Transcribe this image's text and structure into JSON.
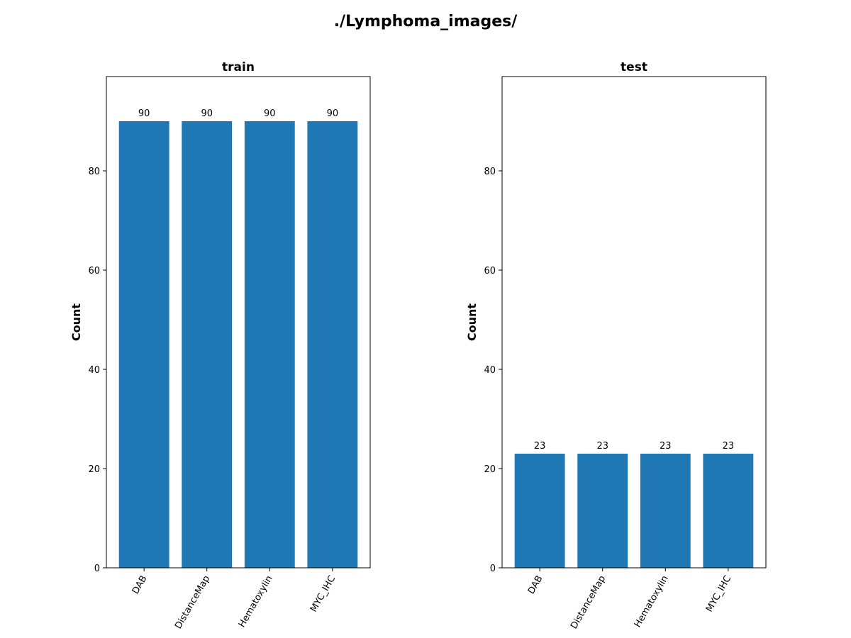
{
  "figure_title": "./Lymphoma_images/",
  "chart_data": [
    {
      "type": "bar",
      "title": "train",
      "xlabel": "",
      "ylabel": "Count",
      "categories": [
        "DAB",
        "DistanceMap",
        "Hematoxylin",
        "MYC_IHC"
      ],
      "values": [
        90,
        90,
        90,
        90
      ],
      "data_labels": [
        "90",
        "90",
        "90",
        "90"
      ],
      "ylim": [
        0,
        99
      ],
      "yticks": [
        0,
        20,
        40,
        60,
        80
      ],
      "bar_color": "#1f77b4",
      "grid": false,
      "legend": "none"
    },
    {
      "type": "bar",
      "title": "test",
      "xlabel": "",
      "ylabel": "Count",
      "categories": [
        "DAB",
        "DistanceMap",
        "Hematoxylin",
        "MYC_IHC"
      ],
      "values": [
        23,
        23,
        23,
        23
      ],
      "data_labels": [
        "23",
        "23",
        "23",
        "23"
      ],
      "ylim": [
        0,
        99
      ],
      "yticks": [
        0,
        20,
        40,
        60,
        80
      ],
      "bar_color": "#1f77b4",
      "grid": false,
      "legend": "none"
    }
  ]
}
